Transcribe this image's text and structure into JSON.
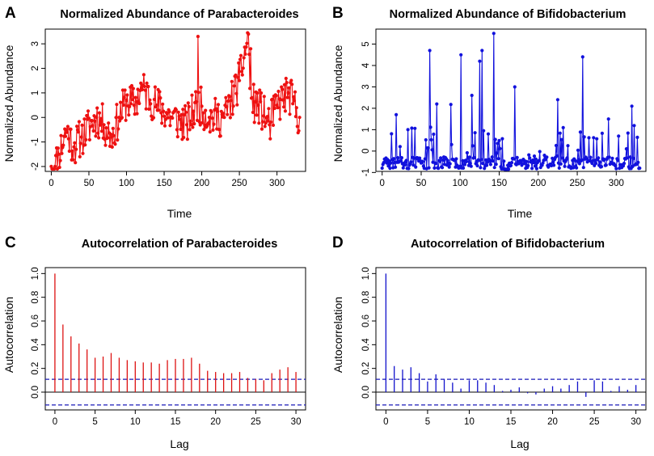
{
  "chart_data": [
    {
      "panel_letter": "A",
      "type": "line",
      "title": "Normalized Abundance of Parabacteroides",
      "xlabel": "Time",
      "ylabel": "Normalized Abundance",
      "xlim": [
        -8,
        338
      ],
      "ylim": [
        -2.2,
        3.6
      ],
      "xticks": [
        0,
        50,
        100,
        150,
        200,
        250,
        300
      ],
      "yticks": [
        -2,
        -1,
        0,
        1,
        2,
        3
      ],
      "color": "#ee1111",
      "markers": true,
      "series_gen": {
        "n": 331,
        "seed": 11,
        "kind": "para"
      },
      "series": [
        {
          "name": "Parabacteroides",
          "x": [
            0,
            5,
            10,
            20,
            30,
            40,
            60,
            70,
            80,
            90,
            100,
            110,
            120,
            140,
            160,
            180,
            195,
            210,
            230,
            250,
            262,
            265,
            275,
            290,
            300,
            315,
            330
          ],
          "y": [
            -2.0,
            -2.0,
            -1.5,
            -0.5,
            -1.2,
            -0.8,
            0.0,
            -0.3,
            -0.8,
            0.0,
            0.7,
            0.5,
            1.2,
            0.5,
            0.0,
            -0.3,
            3.3,
            0.0,
            0.0,
            1.5,
            3.4,
            2.8,
            0.5,
            -0.3,
            0.5,
            1.0,
            0.0
          ]
        }
      ]
    },
    {
      "panel_letter": "B",
      "type": "line",
      "title": "Normalized Abundance of Bifidobacterium",
      "xlabel": "Time",
      "ylabel": "Normalized Abundance",
      "xlim": [
        -8,
        338
      ],
      "ylim": [
        -0.95,
        5.7
      ],
      "xticks": [
        0,
        50,
        100,
        150,
        200,
        250,
        300
      ],
      "yticks": [
        -1,
        0,
        1,
        2,
        3,
        4,
        5
      ],
      "color": "#1111dd",
      "markers": true,
      "series_gen": {
        "n": 331,
        "seed": 23,
        "kind": "bifido"
      },
      "series": [
        {
          "name": "Bifidobacterium",
          "x": [
            0,
            18,
            30,
            61,
            70,
            101,
            115,
            125,
            128,
            143,
            170,
            225,
            257,
            290,
            320,
            330
          ],
          "y": [
            -0.8,
            1.7,
            -0.5,
            4.7,
            2.2,
            4.5,
            2.6,
            4.2,
            4.7,
            5.5,
            3.0,
            2.4,
            4.4,
            1.5,
            2.1,
            -0.8
          ]
        }
      ]
    },
    {
      "panel_letter": "C",
      "type": "bar",
      "title": "Autocorrelation of Parabacteroides",
      "xlabel": "Lag",
      "ylabel": "Autocorrelation",
      "xlim": [
        -1.2,
        31.2
      ],
      "ylim": [
        -0.15,
        1.05
      ],
      "xticks": [
        0,
        5,
        10,
        15,
        20,
        25,
        30
      ],
      "yticks": [
        0.0,
        0.2,
        0.4,
        0.6,
        0.8,
        1.0
      ],
      "color": "#dd1111",
      "ci": 0.108,
      "x": [
        0,
        1,
        2,
        3,
        4,
        5,
        6,
        7,
        8,
        9,
        10,
        11,
        12,
        13,
        14,
        15,
        16,
        17,
        18,
        19,
        20,
        21,
        22,
        23,
        24,
        25,
        26,
        27,
        28,
        29,
        30
      ],
      "values": [
        1.0,
        0.57,
        0.47,
        0.41,
        0.36,
        0.29,
        0.3,
        0.33,
        0.29,
        0.27,
        0.26,
        0.25,
        0.25,
        0.24,
        0.27,
        0.28,
        0.28,
        0.29,
        0.24,
        0.18,
        0.17,
        0.16,
        0.16,
        0.17,
        0.12,
        0.11,
        0.1,
        0.16,
        0.19,
        0.21,
        0.17
      ]
    },
    {
      "panel_letter": "D",
      "type": "bar",
      "title": "Autocorrelation of Bifidobacterium",
      "xlabel": "Lag",
      "ylabel": "Autocorrelation",
      "xlim": [
        -1.2,
        31.2
      ],
      "ylim": [
        -0.15,
        1.05
      ],
      "xticks": [
        0,
        5,
        10,
        15,
        20,
        25,
        30
      ],
      "yticks": [
        0.0,
        0.2,
        0.4,
        0.6,
        0.8,
        1.0
      ],
      "color": "#1111cc",
      "ci": 0.108,
      "x": [
        0,
        1,
        2,
        3,
        4,
        5,
        6,
        7,
        8,
        9,
        10,
        11,
        12,
        13,
        14,
        15,
        16,
        17,
        18,
        19,
        20,
        21,
        22,
        23,
        24,
        25,
        26,
        27,
        28,
        29,
        30
      ],
      "values": [
        1.0,
        0.22,
        0.19,
        0.21,
        0.16,
        0.09,
        0.15,
        0.11,
        0.08,
        0.03,
        0.1,
        0.1,
        0.08,
        0.06,
        0.01,
        0.02,
        0.04,
        -0.01,
        -0.02,
        0.03,
        0.05,
        0.03,
        0.06,
        0.09,
        -0.04,
        0.1,
        0.09,
        0.01,
        0.05,
        0.02,
        0.06
      ]
    }
  ]
}
